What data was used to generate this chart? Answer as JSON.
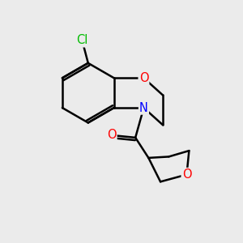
{
  "bg_color": "#ebebeb",
  "bond_color": "#000000",
  "bond_width": 1.8,
  "atom_colors": {
    "O": "#ff0000",
    "N": "#0000ff",
    "Cl": "#00bb00",
    "C": "#000000"
  },
  "font_size_atom": 10.5
}
